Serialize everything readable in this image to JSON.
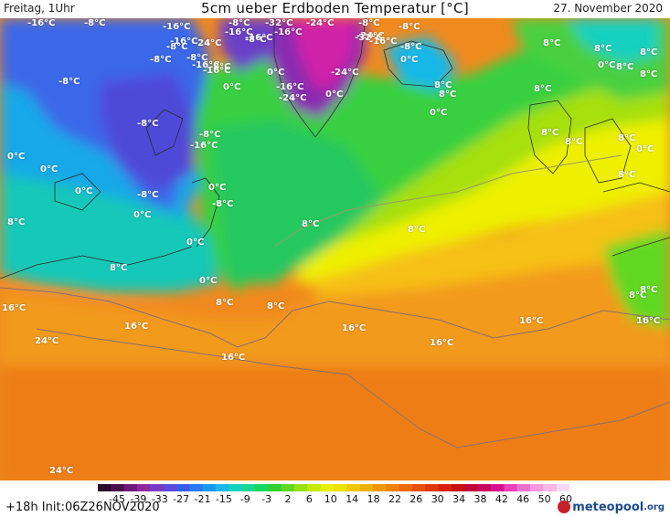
{
  "header": {
    "left": "Freitag, 1Uhr",
    "title": "5cm ueber Erdboden Temperatur [°C]",
    "date": "27. November 2020"
  },
  "legend": {
    "ticks": [
      "-45",
      "-39",
      "-33",
      "-27",
      "-21",
      "-15",
      "-9",
      "-3",
      "2",
      "6",
      "10",
      "14",
      "18",
      "22",
      "26",
      "30",
      "34",
      "38",
      "42",
      "46",
      "50",
      "60"
    ],
    "colors": [
      "#2a0a2a",
      "#4a0e4e",
      "#6e1a7a",
      "#8e2aa0",
      "#7a3ac8",
      "#5a4ad8",
      "#3a5ae8",
      "#2a78f0",
      "#1898f0",
      "#18b8e8",
      "#18d0c0",
      "#18d890",
      "#18d860",
      "#30d030",
      "#60d820",
      "#98e010",
      "#c8e800",
      "#e8f000",
      "#f0e000",
      "#f0c800",
      "#f0b000",
      "#f09800",
      "#f08000",
      "#f06800",
      "#e85000",
      "#e03800",
      "#d82010",
      "#c81010",
      "#c00838",
      "#c80860",
      "#d81090",
      "#e840b8",
      "#f070d0",
      "#f898e0",
      "#f8b8e8",
      "#fcd8f4"
    ]
  },
  "footer": {
    "init": "+18h Init:06Z26NOV2020",
    "logo_main": "meteopool",
    "logo_tld": ".org"
  },
  "labels": [
    {
      "t": "-16°C"
    },
    {
      "t": "-8°C"
    },
    {
      "t": "-16°C"
    },
    {
      "t": "-8°C"
    },
    {
      "t": "-16°C"
    },
    {
      "t": "-24°C"
    },
    {
      "t": "-16°C"
    },
    {
      "t": "-32°C"
    },
    {
      "t": "-24°C"
    },
    {
      "t": "-8°C"
    },
    {
      "t": "-8°C"
    },
    {
      "t": "-16°C"
    },
    {
      "t": "-24°C"
    },
    {
      "t": "-16°C"
    },
    {
      "t": "-8°C"
    },
    {
      "t": "-8°C"
    },
    {
      "t": "-32°C"
    },
    {
      "t": "-16°C"
    },
    {
      "t": "-8°C"
    },
    {
      "t": "0°C"
    },
    {
      "t": "-8°C"
    },
    {
      "t": "-16°C"
    },
    {
      "t": "-8°C"
    },
    {
      "t": "0°C"
    },
    {
      "t": "-24°C"
    },
    {
      "t": "-16°C"
    },
    {
      "t": "-8°C"
    },
    {
      "t": "0°C"
    },
    {
      "t": "-16°C"
    },
    {
      "t": "-24°C"
    },
    {
      "t": "0°C"
    },
    {
      "t": "8°C"
    },
    {
      "t": "8°C"
    },
    {
      "t": "0°C"
    },
    {
      "t": "8°C"
    },
    {
      "t": "8°C"
    },
    {
      "t": "8°C"
    },
    {
      "t": "8°C"
    },
    {
      "t": "0°C"
    },
    {
      "t": "8°C"
    },
    {
      "t": "-8°C"
    },
    {
      "t": "-8°C"
    },
    {
      "t": "-8°C"
    },
    {
      "t": "-16°C"
    },
    {
      "t": "0°C"
    },
    {
      "t": "0°C"
    },
    {
      "t": "0°C"
    },
    {
      "t": "-8°C"
    },
    {
      "t": "0°C"
    },
    {
      "t": "-8°C"
    },
    {
      "t": "0°C"
    },
    {
      "t": "0°C"
    },
    {
      "t": "8°C"
    },
    {
      "t": "8°C"
    },
    {
      "t": "0°C"
    },
    {
      "t": "8°C"
    },
    {
      "t": "8°C"
    },
    {
      "t": "8°C"
    },
    {
      "t": "8°C"
    },
    {
      "t": "8°C"
    },
    {
      "t": "8°C"
    },
    {
      "t": "8°C"
    },
    {
      "t": "0°C"
    },
    {
      "t": "16°C"
    },
    {
      "t": "16°C"
    },
    {
      "t": "16°C"
    },
    {
      "t": "16°C"
    },
    {
      "t": "16°C"
    },
    {
      "t": "16°C"
    },
    {
      "t": "24°C"
    },
    {
      "t": "16°C"
    },
    {
      "t": "24°C"
    },
    {
      "t": "8°C"
    },
    {
      "t": "8°C"
    },
    {
      "t": "8°C"
    },
    {
      "t": "8°C"
    },
    {
      "t": "16°C"
    }
  ]
}
